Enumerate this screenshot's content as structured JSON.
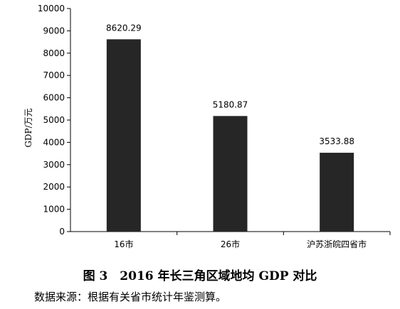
{
  "chart_data": {
    "type": "bar",
    "categories": [
      "16市",
      "26市",
      "沪苏浙皖四省市"
    ],
    "values": [
      8620.29,
      5180.87,
      3533.88
    ],
    "value_labels": [
      "8620.29",
      "5180.87",
      "3533.88"
    ],
    "ylabel": "GDP/万元",
    "ylim": [
      0,
      10000
    ],
    "yticks": [
      "0",
      "1000",
      "2000",
      "3000",
      "4000",
      "5000",
      "6000",
      "7000",
      "8000",
      "9000",
      "10000"
    ],
    "grid": false,
    "bar_color": "#262626"
  },
  "caption": "图 3　2016 年长三角区域地均 GDP 对比",
  "source": "数据来源：根据有关省市统计年鉴测算。"
}
